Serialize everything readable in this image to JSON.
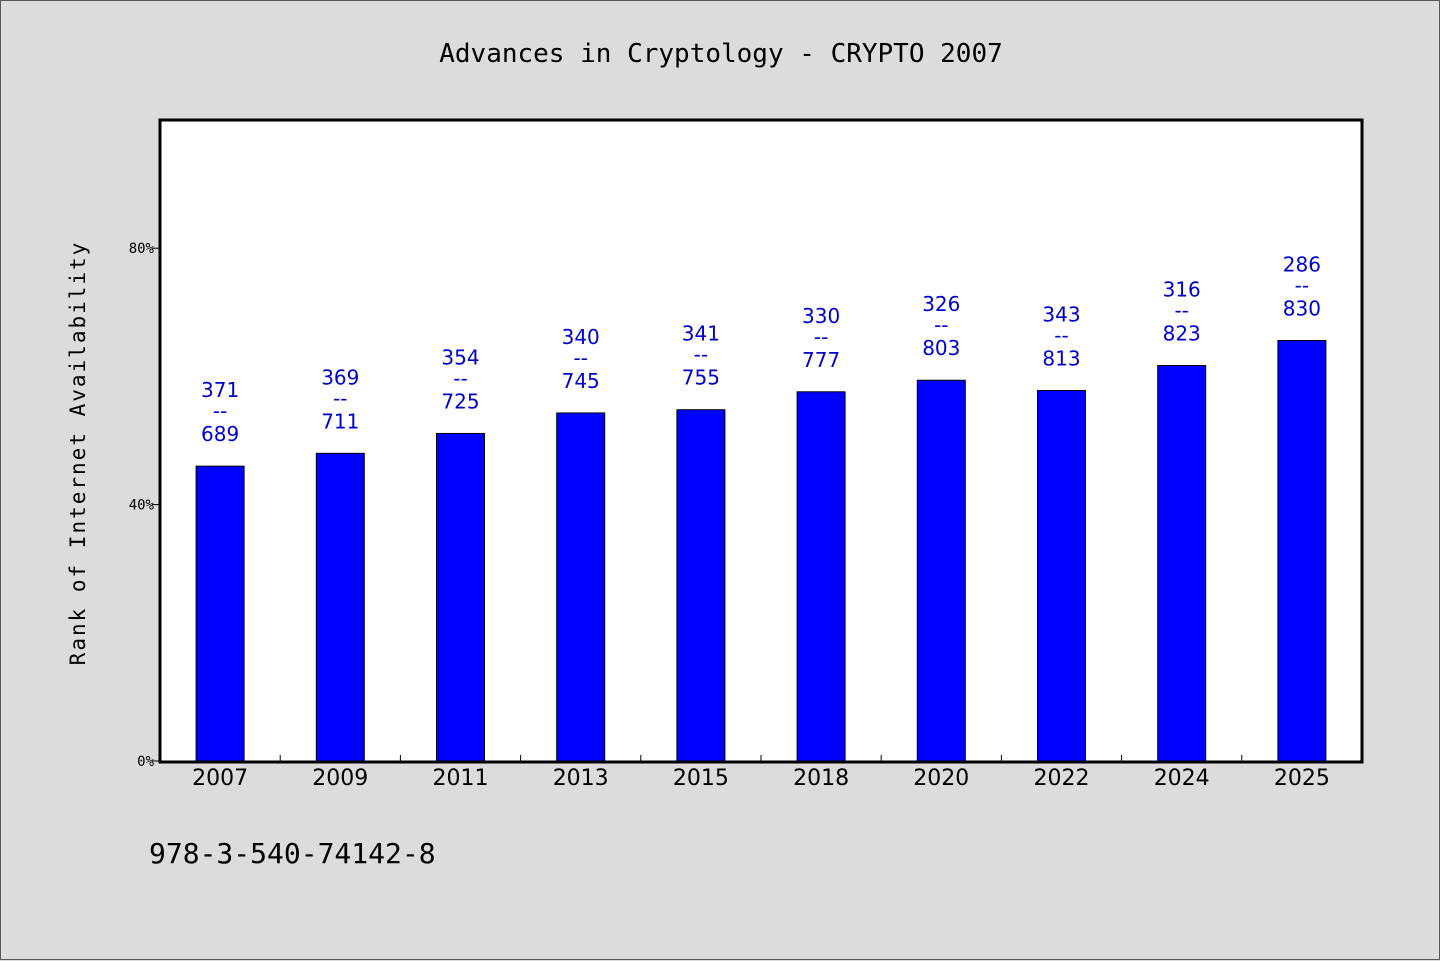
{
  "chart_data": {
    "type": "bar",
    "title": "Advances in Cryptology - CRYPTO 2007",
    "ylabel": "Rank of Internet Availability",
    "xlabel": "",
    "categories": [
      "2007",
      "2009",
      "2011",
      "2013",
      "2015",
      "2018",
      "2020",
      "2022",
      "2024",
      "2025"
    ],
    "values": [
      46.0,
      48.0,
      51.1,
      54.3,
      54.8,
      57.6,
      59.4,
      57.8,
      61.7,
      65.6
    ],
    "data_labels": [
      {
        "top": "371",
        "sep": "--",
        "bottom": "689"
      },
      {
        "top": "369",
        "sep": "--",
        "bottom": "711"
      },
      {
        "top": "354",
        "sep": "--",
        "bottom": "725"
      },
      {
        "top": "340",
        "sep": "--",
        "bottom": "745"
      },
      {
        "top": "341",
        "sep": "--",
        "bottom": "755"
      },
      {
        "top": "330",
        "sep": "--",
        "bottom": "777"
      },
      {
        "top": "326",
        "sep": "--",
        "bottom": "803"
      },
      {
        "top": "343",
        "sep": "--",
        "bottom": "813"
      },
      {
        "top": "316",
        "sep": "--",
        "bottom": "823"
      },
      {
        "top": "286",
        "sep": "--",
        "bottom": "830"
      }
    ],
    "yticks": [
      0,
      40,
      80
    ],
    "ytick_labels": [
      "0%",
      "40%",
      "80%"
    ],
    "ylim": [
      0,
      100
    ],
    "grid": false,
    "colors": {
      "bar": "#0000ff",
      "data_label": "#0000cc",
      "background": "#dcdcdc",
      "plot_background": "#ffffff"
    }
  },
  "footer": {
    "isbn": "978-3-540-74142-8"
  }
}
